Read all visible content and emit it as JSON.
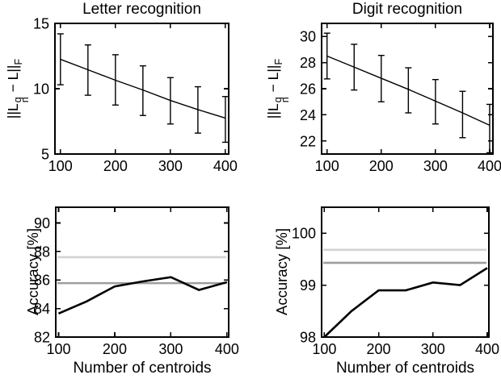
{
  "figure": {
    "background": "#ffffff",
    "axis_color": "#000000",
    "text_color": "#000000"
  },
  "labels": {
    "norm": {
      "p1": "||L",
      "sup": "q",
      "sub": "n",
      "p2": " − L||",
      "sub2": "F"
    },
    "accuracy": "Accuracy [%]",
    "xlabel": "Number of centroids"
  },
  "chart_data": [
    {
      "id": "letter-error",
      "type": "line",
      "title": "Letter recognition",
      "ylabel": "||L_n^q - L||_F",
      "xlabel": "",
      "x": [
        100,
        150,
        200,
        250,
        300,
        350,
        400
      ],
      "series": [
        {
          "name": "mean-distance-with-std",
          "color": "#000000",
          "width": 1.4,
          "values": [
            12.25,
            11.45,
            10.65,
            9.9,
            9.1,
            8.4,
            7.75
          ],
          "err_upper": [
            14.2,
            13.35,
            12.6,
            11.75,
            10.85,
            10.15,
            9.4
          ],
          "err_lower": [
            10.3,
            9.5,
            8.75,
            7.95,
            7.3,
            6.6,
            5.9
          ]
        }
      ],
      "baselines": [],
      "xticks": [
        100,
        200,
        300,
        400
      ],
      "yticks": [
        5,
        10,
        15
      ],
      "xlim": [
        90,
        406
      ],
      "ylim": [
        5,
        15
      ],
      "grid": false,
      "legend": null
    },
    {
      "id": "digit-error",
      "type": "line",
      "title": "Digit recognition",
      "ylabel": "||L_n^q - L||_F",
      "xlabel": "",
      "x": [
        100,
        150,
        200,
        250,
        300,
        350,
        400
      ],
      "series": [
        {
          "name": "mean-distance-with-std",
          "color": "#000000",
          "width": 1.4,
          "values": [
            28.5,
            27.65,
            26.8,
            25.95,
            25.05,
            24.15,
            23.2
          ],
          "err_upper": [
            30.25,
            29.4,
            28.55,
            27.6,
            26.7,
            25.8,
            24.8
          ],
          "err_lower": [
            26.75,
            25.9,
            25.0,
            24.15,
            23.3,
            22.25,
            21.1
          ]
        }
      ],
      "baselines": [],
      "xticks": [
        100,
        200,
        300,
        400
      ],
      "yticks": [
        22,
        24,
        26,
        28,
        30
      ],
      "xlim": [
        90,
        406
      ],
      "ylim": [
        21,
        31
      ],
      "grid": false,
      "legend": null
    },
    {
      "id": "letter-accuracy",
      "type": "line",
      "title": "",
      "ylabel": "Accuracy [%]",
      "xlabel": "Number of centroids",
      "x": [
        100,
        150,
        200,
        250,
        300,
        350,
        400
      ],
      "series": [
        {
          "name": "quantized-model-accuracy",
          "color": "#000000",
          "width": 2.6,
          "values": [
            83.65,
            84.5,
            85.55,
            85.9,
            86.2,
            85.3,
            85.85
          ]
        }
      ],
      "baselines": [
        {
          "name": "reference-upper",
          "value": 87.6,
          "color": "#d2d2d2",
          "width": 2.6
        },
        {
          "name": "reference-lower",
          "value": 85.78,
          "color": "#9e9e9e",
          "width": 2.6
        }
      ],
      "xticks": [
        100,
        200,
        300,
        400
      ],
      "yticks": [
        82,
        84,
        86,
        88,
        90
      ],
      "xlim": [
        95,
        403
      ],
      "ylim": [
        82,
        91.1
      ],
      "grid": false,
      "legend": null
    },
    {
      "id": "digit-accuracy",
      "type": "line",
      "title": "",
      "ylabel": "Accuracy [%]",
      "xlabel": "Number of centroids",
      "x": [
        100,
        150,
        200,
        250,
        300,
        350,
        400
      ],
      "series": [
        {
          "name": "quantized-model-accuracy",
          "color": "#000000",
          "width": 2.6,
          "values": [
            98.0,
            98.5,
            98.9,
            98.9,
            99.05,
            99.0,
            99.33
          ]
        }
      ],
      "baselines": [
        {
          "name": "reference-upper",
          "value": 99.68,
          "color": "#d2d2d2",
          "width": 2.6
        },
        {
          "name": "reference-lower",
          "value": 99.43,
          "color": "#9e9e9e",
          "width": 2.6
        }
      ],
      "xticks": [
        100,
        200,
        300,
        400
      ],
      "yticks": [
        98,
        99,
        100
      ],
      "xlim": [
        95,
        403
      ],
      "ylim": [
        98,
        100.5
      ],
      "grid": false,
      "legend": null
    }
  ]
}
